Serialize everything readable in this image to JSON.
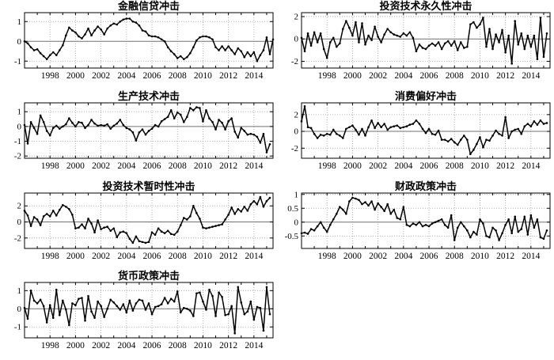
{
  "figure": {
    "background": "#ffffff",
    "description_labels": {
      "x_unit": "year",
      "xtick_labels": [
        "1998",
        "2000",
        "2002",
        "2004",
        "2006",
        "2008",
        "2010",
        "2012",
        "2014"
      ]
    }
  },
  "style": {
    "background": "#ffffff",
    "line_color": "#000000",
    "marker_color": "#000000",
    "grid_color": "#9a9a9a",
    "zero_line_color": "#707070",
    "axis_color": "#000000",
    "text_color": "#000000"
  },
  "chart_data": [
    {
      "type": "line",
      "title": "金融信贷冲击",
      "x_start": 1996,
      "x_step": 0.25,
      "xlim": [
        1996,
        2015.5
      ],
      "ylim": [
        -1.35,
        1.45
      ],
      "xticks": [
        1998,
        2000,
        2002,
        2004,
        2006,
        2008,
        2010,
        2012,
        2014
      ],
      "yticks": [
        -1,
        0,
        1
      ],
      "grid": true,
      "legend": "none",
      "marker": "dot",
      "values": [
        0.0,
        -0.1,
        -0.3,
        -0.45,
        -0.4,
        -0.6,
        -0.75,
        -0.9,
        -0.7,
        -0.55,
        -0.7,
        -0.45,
        -0.2,
        0.3,
        0.7,
        0.55,
        0.45,
        0.25,
        0.15,
        0.35,
        0.65,
        0.3,
        0.55,
        0.75,
        0.6,
        0.35,
        0.65,
        0.8,
        0.9,
        0.85,
        1.0,
        1.1,
        1.15,
        1.15,
        1.0,
        0.95,
        0.8,
        0.55,
        0.5,
        0.3,
        0.25,
        0.25,
        0.2,
        0.1,
        0.0,
        -0.3,
        -0.5,
        -0.65,
        -0.85,
        -0.75,
        -0.9,
        -0.8,
        -0.6,
        -0.3,
        0.05,
        0.2,
        0.25,
        0.25,
        0.2,
        0.1,
        -0.3,
        -0.45,
        -0.25,
        -0.45,
        -0.25,
        -0.45,
        -0.65,
        -0.35,
        -0.5,
        -0.8,
        -0.55,
        -0.75,
        -0.55,
        -1.0,
        -0.7,
        -0.45,
        0.2,
        -0.65,
        0.1
      ]
    },
    {
      "type": "line",
      "title": "投资技术永久性冲击",
      "x_start": 1996,
      "x_step": 0.25,
      "xlim": [
        1996,
        2015.5
      ],
      "ylim": [
        -2.6,
        2.35
      ],
      "xticks": [
        1998,
        2000,
        2002,
        2004,
        2006,
        2008,
        2010,
        2012,
        2014
      ],
      "yticks": [
        -2,
        0,
        2
      ],
      "grid": true,
      "legend": "none",
      "marker": "dot",
      "values": [
        0.1,
        -1.1,
        0.5,
        -0.6,
        0.6,
        -0.3,
        0.5,
        -0.9,
        -1.7,
        -0.3,
        0.1,
        -0.7,
        -0.4,
        0.9,
        1.6,
        1.0,
        0.3,
        1.5,
        -0.3,
        1.4,
        -0.5,
        0.3,
        -0.1,
        1.1,
        0.2,
        -0.3,
        0.4,
        0.9,
        0.6,
        0.4,
        0.3,
        0.2,
        0.5,
        0.3,
        0.6,
        0.1,
        -1.1,
        -0.5,
        -0.8,
        -0.9,
        -0.6,
        -0.4,
        -0.6,
        -0.3,
        -0.9,
        -0.4,
        -0.2,
        -0.6,
        -0.2,
        -1.0,
        -0.3,
        -0.8,
        -0.7,
        1.3,
        1.5,
        1.0,
        1.3,
        1.9,
        -0.7,
        0.9,
        -0.9,
        0.4,
        -0.3,
        0.8,
        -1.2,
        0.3,
        -2.2,
        1.6,
        -0.5,
        0.5,
        -0.9,
        0.3,
        -0.7,
        0.3,
        -1.8,
        1.9,
        -1.6,
        0.5
      ]
    },
    {
      "type": "line",
      "title": "生产技术冲击",
      "x_start": 1996,
      "x_step": 0.25,
      "xlim": [
        1996,
        2015.5
      ],
      "ylim": [
        -2.15,
        1.6
      ],
      "xticks": [
        1998,
        2000,
        2002,
        2004,
        2006,
        2008,
        2010,
        2012,
        2014
      ],
      "yticks": [
        -2,
        -1,
        0,
        1
      ],
      "grid": true,
      "legend": "none",
      "marker": "dot",
      "values": [
        0.1,
        -1.15,
        0.3,
        -0.1,
        -0.5,
        0.75,
        0.3,
        -0.3,
        -0.6,
        -0.1,
        0.05,
        -0.15,
        0.0,
        0.15,
        0.55,
        0.25,
        0.0,
        0.3,
        0.25,
        -0.1,
        0.1,
        0.45,
        0.2,
        0.05,
        0.1,
        0.05,
        0.15,
        -0.15,
        0.05,
        0.2,
        0.45,
        0.1,
        -0.1,
        -0.2,
        -0.4,
        -0.95,
        -0.4,
        -0.2,
        -0.55,
        -0.3,
        -0.15,
        0.1,
        0.0,
        0.35,
        0.5,
        0.65,
        1.1,
        0.55,
        0.95,
        0.8,
        0.3,
        0.65,
        1.25,
        1.1,
        1.3,
        1.25,
        0.35,
        1.1,
        0.55,
        0.3,
        -0.2,
        0.45,
        0.25,
        -0.2,
        0.35,
        0.55,
        -0.35,
        -0.75,
        -0.1,
        -0.3,
        -0.55,
        -0.5,
        -0.55,
        -0.7,
        -1.1,
        -0.5,
        -1.75,
        -1.2
      ]
    },
    {
      "type": "line",
      "title": "消费偏好冲击",
      "x_start": 1996,
      "x_step": 0.25,
      "xlim": [
        1996,
        2015.5
      ],
      "ylim": [
        -3.2,
        3.4
      ],
      "xticks": [
        1998,
        2000,
        2002,
        2004,
        2006,
        2008,
        2010,
        2012,
        2014
      ],
      "yticks": [
        -2,
        0,
        2
      ],
      "grid": true,
      "legend": "none",
      "marker": "dot",
      "values": [
        1.2,
        3.0,
        0.5,
        0.4,
        -0.3,
        -0.8,
        -0.4,
        -0.5,
        -0.3,
        -0.4,
        0.2,
        -0.3,
        -0.5,
        -0.8,
        0.3,
        0.5,
        0.7,
        0.2,
        -0.4,
        0.3,
        -0.5,
        0.5,
        1.3,
        0.4,
        1.0,
        0.5,
        0.9,
        0.2,
        0.5,
        0.6,
        0.7,
        0.4,
        0.5,
        0.6,
        0.8,
        0.9,
        1.3,
        0.9,
        0.3,
        -0.2,
        0.3,
        -0.3,
        -0.4,
        0.1,
        -1.0,
        -1.0,
        -1.2,
        -0.9,
        -1.3,
        -1.6,
        -1.0,
        -0.5,
        -1.0,
        -2.7,
        -2.2,
        -1.5,
        -0.7,
        -1.9,
        -1.0,
        -1.1,
        -0.5,
        0.1,
        -0.3,
        -0.5,
        1.7,
        -0.8,
        0.0,
        0.2,
        0.3,
        -0.3,
        0.6,
        0.9,
        0.6,
        1.2,
        0.8,
        1.3,
        0.9,
        1.0
      ]
    },
    {
      "type": "line",
      "title": "投资技术暂时性冲击",
      "x_start": 1996,
      "x_step": 0.25,
      "xlim": [
        1996,
        2015.5
      ],
      "ylim": [
        -3.3,
        3.6
      ],
      "xticks": [
        1998,
        2000,
        2002,
        2004,
        2006,
        2008,
        2010,
        2012,
        2014
      ],
      "yticks": [
        -2,
        0,
        2
      ],
      "grid": true,
      "legend": "none",
      "marker": "dot",
      "values": [
        1.4,
        0.8,
        -0.5,
        0.6,
        0.3,
        -0.4,
        0.7,
        1.0,
        0.7,
        1.4,
        0.8,
        1.5,
        2.1,
        1.9,
        1.6,
        0.9,
        -0.8,
        -0.7,
        -0.3,
        -0.8,
        0.4,
        -0.2,
        -1.3,
        0.2,
        -0.9,
        -0.7,
        -0.6,
        -1.1,
        -0.8,
        -1.9,
        -1.3,
        -1.2,
        -1.4,
        -2.1,
        -2.6,
        -1.8,
        -2.4,
        -2.5,
        -2.6,
        -2.5,
        -1.3,
        -1.6,
        -0.8,
        -1.2,
        -1.4,
        -1.1,
        -1.5,
        -1.6,
        -1.2,
        -0.4,
        0.5,
        0.3,
        0.7,
        2.0,
        1.1,
        0.4,
        -0.7,
        -0.8,
        -0.7,
        -0.6,
        -0.5,
        -0.4,
        -0.3,
        0.3,
        0.9,
        1.8,
        1.0,
        1.6,
        1.3,
        1.9,
        1.4,
        2.2,
        2.6,
        2.2,
        3.1,
        1.9,
        2.6,
        3.0
      ]
    },
    {
      "type": "line",
      "title": "财政政策冲击",
      "x_start": 1996,
      "x_step": 0.25,
      "xlim": [
        1996,
        2015.5
      ],
      "ylim": [
        -0.95,
        1.05
      ],
      "xticks": [
        1998,
        2000,
        2002,
        2004,
        2006,
        2008,
        2010,
        2012,
        2014
      ],
      "yticks": [
        -0.5,
        0,
        0.5,
        1
      ],
      "grid": true,
      "legend": "none",
      "marker": "dot",
      "values": [
        -0.4,
        -0.38,
        -0.42,
        -0.25,
        -0.3,
        -0.15,
        0.0,
        -0.2,
        -0.35,
        -0.1,
        0.1,
        0.3,
        0.55,
        0.45,
        0.3,
        0.75,
        0.88,
        0.85,
        0.8,
        0.65,
        0.72,
        0.6,
        0.75,
        0.45,
        0.68,
        0.55,
        0.4,
        0.65,
        0.3,
        0.45,
        0.15,
        0.1,
        0.55,
        -0.1,
        -0.15,
        -0.05,
        -0.1,
        0.0,
        -0.15,
        -0.1,
        -0.15,
        -0.05,
        0.0,
        0.05,
        0.1,
        -0.1,
        -0.2,
        0.25,
        -0.65,
        -0.2,
        0.0,
        -0.15,
        -0.3,
        -0.55,
        -0.35,
        -0.45,
        0.1,
        -0.05,
        -0.5,
        -0.55,
        -0.2,
        -0.3,
        -0.65,
        -0.4,
        -0.1,
        0.1,
        -0.4,
        0.2,
        -0.35,
        -0.25,
        0.2,
        -0.45,
        0.25,
        -0.2,
        0.1,
        -0.55,
        -0.6,
        -0.3
      ]
    },
    {
      "type": "line",
      "title": "货币政策冲击",
      "x_start": 1996,
      "x_step": 0.25,
      "xlim": [
        1996,
        2015.5
      ],
      "ylim": [
        -1.6,
        1.45
      ],
      "xticks": [
        1998,
        2000,
        2002,
        2004,
        2006,
        2008,
        2010,
        2012,
        2014
      ],
      "yticks": [
        -1,
        0,
        1
      ],
      "grid": true,
      "legend": "none",
      "marker": "dot",
      "values": [
        0.05,
        -0.55,
        1.0,
        0.45,
        0.3,
        0.5,
        0.15,
        -0.75,
        0.2,
        -0.5,
        1.05,
        -0.35,
        0.45,
        -0.05,
        -0.9,
        0.3,
        0.2,
        0.55,
        0.6,
        -0.65,
        0.7,
        -0.15,
        -0.5,
        0.4,
        0.15,
        -0.45,
        0.0,
        0.5,
        0.35,
        0.15,
        -0.05,
        0.25,
        -0.2,
        0.45,
        -0.1,
        0.3,
        0.5,
        0.45,
        -0.05,
        0.3,
        -0.3,
        0.1,
        0.15,
        0.25,
        0.6,
        0.3,
        0.55,
        0.4,
        0.95,
        -0.2,
        0.05,
        0.0,
        -0.1,
        -0.4,
        0.85,
        0.9,
        0.4,
        -0.05,
        1.05,
        0.7,
        -0.4,
        0.9,
        0.65,
        -0.35,
        -0.3,
        0.15,
        -1.35,
        1.2,
        0.35,
        -0.3,
        -0.15,
        0.4,
        -0.6,
        0.1,
        0.05,
        -1.2,
        1.2,
        -0.3
      ]
    }
  ]
}
